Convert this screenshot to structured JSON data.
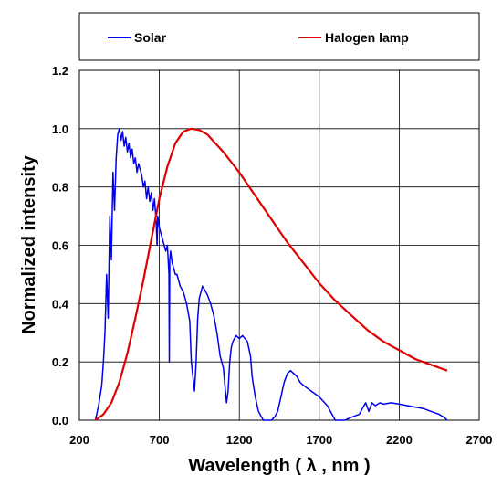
{
  "chart_data": {
    "type": "line",
    "xlabel": "Wavelength ( λ , nm )",
    "ylabel": "Normalized intensity",
    "xlim": [
      200,
      2700
    ],
    "ylim": [
      0,
      1.2
    ],
    "x_ticks": [
      200,
      700,
      1200,
      1700,
      2200,
      2700
    ],
    "y_ticks": [
      "0.0",
      "0.2",
      "0.4",
      "0.6",
      "0.8",
      "1.0",
      "1.2"
    ],
    "grid": true,
    "legend_position": "top, outside plot area",
    "series": [
      {
        "name": "Solar",
        "color": "#0000ee",
        "x": [
          300,
          320,
          340,
          350,
          360,
          370,
          380,
          390,
          400,
          410,
          420,
          430,
          440,
          450,
          460,
          470,
          480,
          490,
          500,
          510,
          520,
          530,
          540,
          550,
          560,
          570,
          580,
          590,
          600,
          610,
          620,
          630,
          640,
          650,
          660,
          670,
          680,
          686,
          690,
          700,
          710,
          720,
          730,
          740,
          750,
          760,
          762,
          765,
          770,
          780,
          790,
          800,
          810,
          820,
          830,
          850,
          870,
          890,
          900,
          920,
          930,
          940,
          950,
          960,
          970,
          980,
          1000,
          1020,
          1040,
          1060,
          1080,
          1100,
          1110,
          1120,
          1130,
          1140,
          1150,
          1160,
          1170,
          1180,
          1200,
          1220,
          1250,
          1270,
          1280,
          1300,
          1320,
          1340,
          1350,
          1360,
          1380,
          1400,
          1420,
          1440,
          1460,
          1480,
          1500,
          1520,
          1540,
          1560,
          1580,
          1600,
          1650,
          1700,
          1750,
          1780,
          1800,
          1820,
          1840,
          1860,
          1900,
          1950,
          1970,
          1990,
          2010,
          2030,
          2050,
          2080,
          2100,
          2150,
          2200,
          2250,
          2300,
          2350,
          2400,
          2450,
          2480,
          2500
        ],
        "values": [
          0.0,
          0.05,
          0.12,
          0.2,
          0.3,
          0.5,
          0.35,
          0.7,
          0.55,
          0.85,
          0.72,
          0.9,
          0.98,
          1.0,
          0.96,
          0.99,
          0.94,
          0.97,
          0.92,
          0.95,
          0.9,
          0.93,
          0.88,
          0.9,
          0.85,
          0.88,
          0.86,
          0.84,
          0.8,
          0.82,
          0.76,
          0.8,
          0.75,
          0.78,
          0.72,
          0.76,
          0.68,
          0.6,
          0.7,
          0.66,
          0.64,
          0.62,
          0.6,
          0.58,
          0.6,
          0.5,
          0.2,
          0.55,
          0.58,
          0.54,
          0.52,
          0.5,
          0.5,
          0.48,
          0.46,
          0.44,
          0.4,
          0.34,
          0.2,
          0.1,
          0.2,
          0.35,
          0.42,
          0.44,
          0.46,
          0.45,
          0.43,
          0.4,
          0.36,
          0.3,
          0.22,
          0.18,
          0.12,
          0.06,
          0.1,
          0.2,
          0.25,
          0.27,
          0.28,
          0.29,
          0.28,
          0.29,
          0.27,
          0.22,
          0.15,
          0.08,
          0.03,
          0.01,
          0.0,
          0.0,
          0.0,
          0.0,
          0.01,
          0.03,
          0.08,
          0.13,
          0.16,
          0.17,
          0.16,
          0.15,
          0.13,
          0.12,
          0.1,
          0.08,
          0.05,
          0.02,
          0.0,
          0.0,
          0.0,
          0.0,
          0.01,
          0.02,
          0.04,
          0.06,
          0.03,
          0.06,
          0.05,
          0.06,
          0.055,
          0.06,
          0.055,
          0.05,
          0.045,
          0.04,
          0.03,
          0.02,
          0.01,
          0.0
        ]
      },
      {
        "name": "Halogen lamp",
        "color": "#e00000",
        "x": [
          300,
          350,
          400,
          450,
          500,
          550,
          600,
          650,
          700,
          750,
          800,
          850,
          900,
          950,
          1000,
          1100,
          1200,
          1300,
          1400,
          1500,
          1600,
          1700,
          1800,
          1900,
          2000,
          2100,
          2200,
          2300,
          2400,
          2500
        ],
        "values": [
          0.0,
          0.02,
          0.06,
          0.13,
          0.23,
          0.35,
          0.48,
          0.62,
          0.76,
          0.87,
          0.95,
          0.99,
          1.0,
          0.995,
          0.98,
          0.92,
          0.85,
          0.77,
          0.69,
          0.61,
          0.54,
          0.47,
          0.41,
          0.36,
          0.31,
          0.27,
          0.24,
          0.21,
          0.19,
          0.17
        ]
      }
    ]
  }
}
